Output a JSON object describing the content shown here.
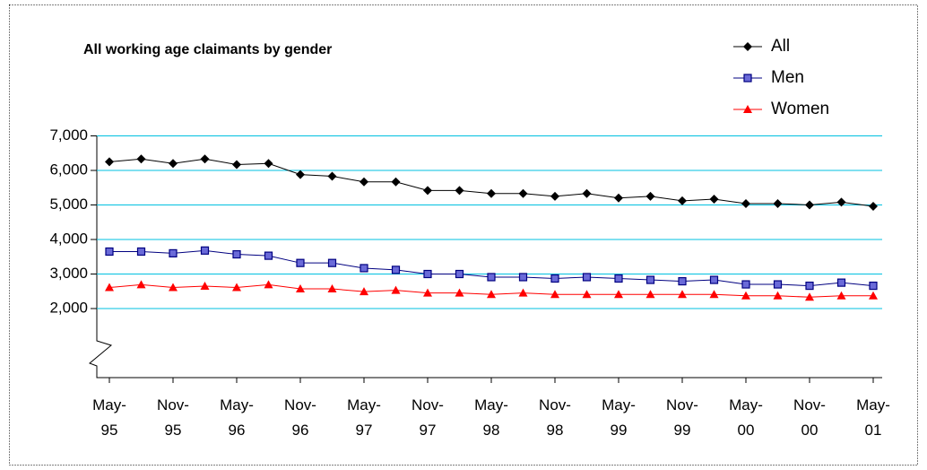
{
  "chart_data": {
    "type": "line",
    "title": "All working age claimants by gender",
    "categories": [
      "May-95",
      null,
      "Nov-95",
      null,
      "May-96",
      null,
      "Nov-96",
      null,
      "May-97",
      null,
      "Nov-97",
      null,
      "May-98",
      null,
      "Nov-98",
      null,
      "May-99",
      null,
      "Nov-99",
      null,
      "May-00",
      null,
      "Nov-00",
      null,
      "May-01"
    ],
    "series": [
      {
        "name": "All",
        "color": "#000000",
        "marker": "diamond",
        "values": [
          6250,
          6330,
          6200,
          6330,
          6170,
          6200,
          5880,
          5830,
          5670,
          5670,
          5420,
          5420,
          5330,
          5330,
          5250,
          5330,
          5200,
          5250,
          5120,
          5170,
          5040,
          5040,
          5000,
          5080,
          4960
        ]
      },
      {
        "name": "Men",
        "color": "#000080",
        "marker": "square",
        "values": [
          3650,
          3650,
          3600,
          3680,
          3570,
          3530,
          3320,
          3320,
          3170,
          3120,
          3000,
          3000,
          2910,
          2910,
          2870,
          2910,
          2870,
          2830,
          2790,
          2830,
          2700,
          2700,
          2660,
          2750,
          2660
        ]
      },
      {
        "name": "Women",
        "color": "#ff0000",
        "marker": "triangle",
        "values": [
          2610,
          2690,
          2610,
          2650,
          2610,
          2690,
          2570,
          2570,
          2490,
          2530,
          2450,
          2450,
          2410,
          2450,
          2410,
          2410,
          2410,
          2410,
          2410,
          2410,
          2370,
          2370,
          2330,
          2370,
          2370
        ]
      }
    ],
    "ylim": [
      0,
      7000
    ],
    "yticks": [
      {
        "value": 2000,
        "label": "2,000"
      },
      {
        "value": 3000,
        "label": "3,000"
      },
      {
        "value": 4000,
        "label": "4,000"
      },
      {
        "value": 5000,
        "label": "5,000"
      },
      {
        "value": 6000,
        "label": "6,000"
      },
      {
        "value": 7000,
        "label": "7,000"
      }
    ],
    "grid": true,
    "grid_color": "#00c0e0",
    "legend": "top-right"
  }
}
